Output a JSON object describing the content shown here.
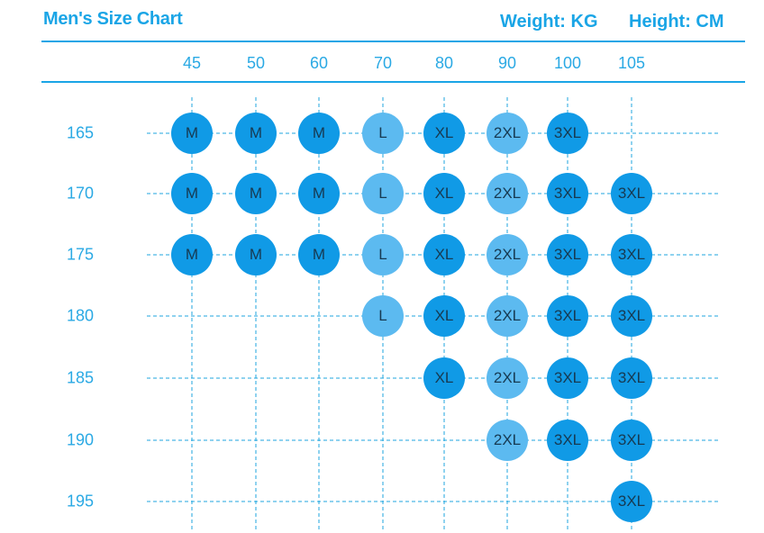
{
  "header": {
    "title": "Men's Size Chart",
    "weight_unit": "Weight: KG",
    "height_unit": "Height: CM"
  },
  "colors": {
    "accent": "#1aa5e6",
    "grid": "#1fa6df",
    "size_colors": {
      "M": "#109ae6",
      "L": "#5cbaf0",
      "XL": "#109ae6",
      "2XL": "#5cbaf0",
      "3XL": "#109ae6"
    }
  },
  "chart_data": {
    "type": "table",
    "title": "Men's Size Chart",
    "xlabel": "Weight: KG",
    "ylabel": "Height: CM",
    "weights": [
      "45",
      "50",
      "60",
      "70",
      "80",
      "90",
      "100",
      "105"
    ],
    "heights": [
      "165",
      "170",
      "175",
      "180",
      "185",
      "190",
      "195"
    ],
    "sizes": [
      [
        "M",
        "M",
        "M",
        "L",
        "XL",
        "2XL",
        "3XL",
        ""
      ],
      [
        "M",
        "M",
        "M",
        "L",
        "XL",
        "2XL",
        "3XL",
        "3XL"
      ],
      [
        "M",
        "M",
        "M",
        "L",
        "XL",
        "2XL",
        "3XL",
        "3XL"
      ],
      [
        "",
        "",
        "",
        "L",
        "XL",
        "2XL",
        "3XL",
        "3XL"
      ],
      [
        "",
        "",
        "",
        "",
        "XL",
        "2XL",
        "3XL",
        "3XL"
      ],
      [
        "",
        "",
        "",
        "",
        "",
        "2XL",
        "3XL",
        "3XL"
      ],
      [
        "",
        "",
        "",
        "",
        "",
        "",
        "",
        "3XL"
      ]
    ]
  }
}
